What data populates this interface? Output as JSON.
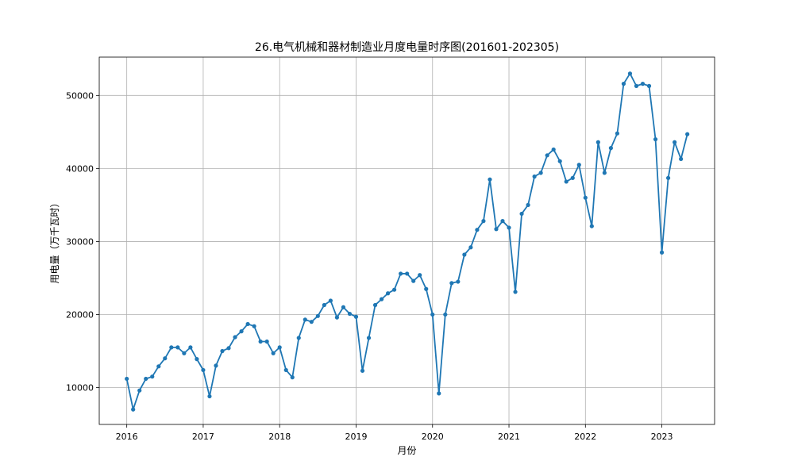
{
  "chart_data": {
    "type": "line",
    "title": "26.电气机械和器材制造业月度电量时序图(201601-202305)",
    "xlabel": "月份",
    "ylabel": "用电量（万千瓦时）",
    "xlim": [
      2015.64,
      2023.69
    ],
    "ylim": [
      4950,
      55250
    ],
    "xticks": [
      2016,
      2017,
      2018,
      2019,
      2020,
      2021,
      2022,
      2023
    ],
    "xtick_labels": [
      "2016",
      "2017",
      "2018",
      "2019",
      "2020",
      "2021",
      "2022",
      "2023"
    ],
    "yticks": [
      10000,
      20000,
      30000,
      40000,
      50000
    ],
    "ytick_labels": [
      "10000",
      "20000",
      "30000",
      "40000",
      "50000"
    ],
    "grid": true,
    "line_color": "#1f77b4",
    "series": [
      {
        "start_year": 2016,
        "start_month": 1,
        "values": [
          11200,
          7000,
          9600,
          11200,
          11500,
          12900,
          14000,
          15500,
          15500,
          14700,
          15500,
          13900,
          12400,
          8800,
          13000,
          15000,
          15400,
          16900,
          17700,
          18700,
          18400,
          16300,
          16300,
          14700,
          15500,
          12400,
          11400,
          16800,
          19300,
          19000,
          19800,
          21300,
          21900,
          19600,
          21000,
          20100,
          19700,
          12300,
          16800,
          21300,
          22100,
          22900,
          23400,
          25600,
          25600,
          24600,
          25400,
          23500,
          20000,
          9200,
          20000,
          24300,
          24500,
          28200,
          29200,
          31600,
          32800,
          38500,
          31700,
          32800,
          31900,
          23100,
          33800,
          35000,
          38900,
          39400,
          41800,
          42600,
          41000,
          38200,
          38700,
          40500,
          36000,
          32100,
          43600,
          39400,
          42800,
          44800,
          51600,
          53000,
          51300,
          51600,
          51300,
          44000,
          28500,
          38700,
          43600,
          41300,
          44700
        ]
      }
    ]
  }
}
